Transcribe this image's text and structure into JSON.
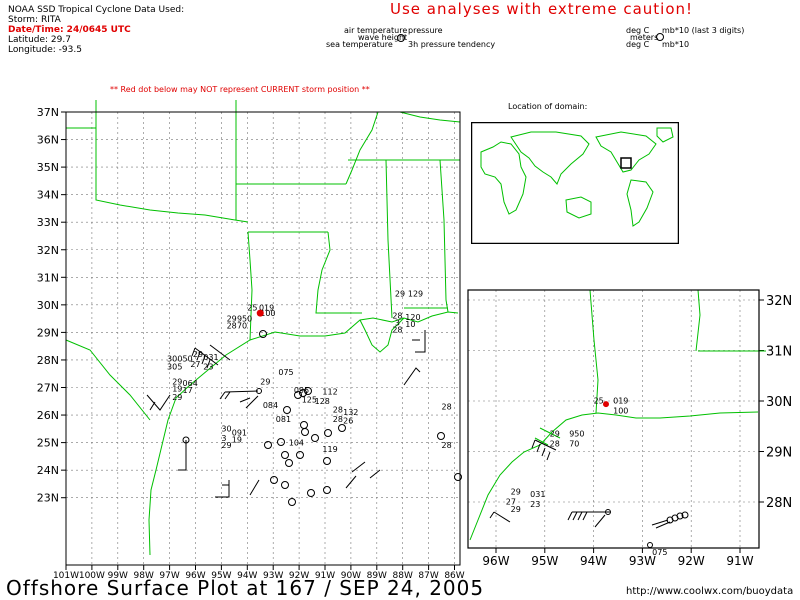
{
  "header": {
    "source": "NOAA SSD Tropical Cyclone Data Used:",
    "storm": "Storm: RITA",
    "datetime": "Date/Time: 24/0645 UTC",
    "latitude": "Latitude: 29.7",
    "longitude": "Longitude: -93.5",
    "caution": "Use analyses with extreme caution!",
    "warning": "** Red dot below may NOT represent CURRENT storm position **"
  },
  "legend": {
    "air_temperature": "air temperature",
    "pressure": "pressure",
    "wave_height": "wave height",
    "sea_temperature": "sea temperature",
    "pressure_tendency": "3h pressure tendency",
    "deg_c_1": "deg C",
    "mb_units": "mb*10 (last 3 digits)",
    "meters": "meters",
    "deg_c_2": "deg C",
    "mb_tendency_units": "mb*10"
  },
  "inset": {
    "title": "Location of domain:"
  },
  "main_map": {
    "lat_labels": [
      "37N",
      "36N",
      "35N",
      "34N",
      "33N",
      "32N",
      "31N",
      "30N",
      "29N",
      "28N",
      "27N",
      "26N",
      "25N",
      "24N",
      "23N"
    ],
    "lon_labels": [
      "101W",
      "100W",
      "99W",
      "98W",
      "97W",
      "96W",
      "95W",
      "94W",
      "93W",
      "92W",
      "91W",
      "90W",
      "89W",
      "88W",
      "87W",
      "86W"
    ],
    "station_labels": [
      {
        "text": "25",
        "lon": -94.0,
        "lat": 29.8
      },
      {
        "text": "019",
        "lon": -93.55,
        "lat": 29.8
      },
      {
        "text": "100",
        "lon": -93.5,
        "lat": 29.6
      },
      {
        "text": "29",
        "lon": -94.8,
        "lat": 29.4
      },
      {
        "text": "950",
        "lon": -94.4,
        "lat": 29.4
      },
      {
        "text": "28",
        "lon": -94.8,
        "lat": 29.15
      },
      {
        "text": "70",
        "lon": -94.4,
        "lat": 29.15
      },
      {
        "text": "29",
        "lon": -88.3,
        "lat": 30.3
      },
      {
        "text": "129",
        "lon": -87.8,
        "lat": 30.3
      },
      {
        "text": "28",
        "lon": -88.4,
        "lat": 29.5
      },
      {
        "text": "120",
        "lon": -87.9,
        "lat": 29.45
      },
      {
        "text": "3",
        "lon": -88.3,
        "lat": 29.25
      },
      {
        "text": "10",
        "lon": -87.9,
        "lat": 29.2
      },
      {
        "text": "28",
        "lon": -88.4,
        "lat": 29.0
      },
      {
        "text": "29",
        "lon": -96.1,
        "lat": 28.1
      },
      {
        "text": "031",
        "lon": -95.7,
        "lat": 28.0
      },
      {
        "text": "30",
        "lon": -97.1,
        "lat": 27.95
      },
      {
        "text": "050",
        "lon": -96.7,
        "lat": 27.95
      },
      {
        "text": "27",
        "lon": -96.2,
        "lat": 27.75
      },
      {
        "text": "23",
        "lon": -95.7,
        "lat": 27.65
      },
      {
        "text": "30",
        "lon": -97.1,
        "lat": 27.65
      },
      {
        "text": "5",
        "lon": -96.7,
        "lat": 27.65
      },
      {
        "text": "29",
        "lon": -96.9,
        "lat": 27.1
      },
      {
        "text": "064",
        "lon": -96.5,
        "lat": 27.05
      },
      {
        "text": "19",
        "lon": -96.9,
        "lat": 26.85
      },
      {
        "text": "17",
        "lon": -96.5,
        "lat": 26.8
      },
      {
        "text": "29",
        "lon": -96.9,
        "lat": 26.55
      },
      {
        "text": "075",
        "lon": -92.8,
        "lat": 27.45
      },
      {
        "text": "29",
        "lon": -93.5,
        "lat": 27.1
      },
      {
        "text": "095",
        "lon": -92.2,
        "lat": 26.8
      },
      {
        "text": "112",
        "lon": -91.1,
        "lat": 26.75
      },
      {
        "text": "125",
        "lon": -91.9,
        "lat": 26.45
      },
      {
        "text": "128",
        "lon": -91.4,
        "lat": 26.4
      },
      {
        "text": "084",
        "lon": -93.4,
        "lat": 26.25
      },
      {
        "text": "28",
        "lon": -90.7,
        "lat": 26.1
      },
      {
        "text": "132",
        "lon": -90.3,
        "lat": 26.0
      },
      {
        "text": "081",
        "lon": -92.9,
        "lat": 25.75
      },
      {
        "text": "28",
        "lon": -90.7,
        "lat": 25.75
      },
      {
        "text": "26",
        "lon": -90.3,
        "lat": 25.7
      },
      {
        "text": "30",
        "lon": -95.0,
        "lat": 25.4
      },
      {
        "text": "091",
        "lon": -94.6,
        "lat": 25.25
      },
      {
        "text": "3",
        "lon": -95.0,
        "lat": 25.05
      },
      {
        "text": "19",
        "lon": -94.6,
        "lat": 25.0
      },
      {
        "text": "29",
        "lon": -95.0,
        "lat": 24.8
      },
      {
        "text": "104",
        "lon": -92.4,
        "lat": 24.9
      },
      {
        "text": "119",
        "lon": -91.1,
        "lat": 24.65
      },
      {
        "text": "28",
        "lon": -86.5,
        "lat": 26.2
      },
      {
        "text": "28",
        "lon": -86.5,
        "lat": 24.8
      }
    ]
  },
  "detail_map": {
    "lat_labels": [
      "32N",
      "31N",
      "30N",
      "29N",
      "28N"
    ],
    "lon_labels": [
      "96W",
      "95W",
      "94W",
      "93W",
      "92W",
      "91W"
    ],
    "station_labels": [
      {
        "text": "25",
        "lon": -94.0,
        "lat": 29.95
      },
      {
        "text": "019",
        "lon": -93.6,
        "lat": 29.95
      },
      {
        "text": "100",
        "lon": -93.6,
        "lat": 29.75
      },
      {
        "text": "29",
        "lon": -94.9,
        "lat": 29.3
      },
      {
        "text": "950",
        "lon": -94.5,
        "lat": 29.3
      },
      {
        "text": "28",
        "lon": -94.9,
        "lat": 29.1
      },
      {
        "text": "70",
        "lon": -94.5,
        "lat": 29.1
      },
      {
        "text": "29",
        "lon": -95.7,
        "lat": 28.15
      },
      {
        "text": "031",
        "lon": -95.3,
        "lat": 28.1
      },
      {
        "text": "27",
        "lon": -95.8,
        "lat": 27.95
      },
      {
        "text": "23",
        "lon": -95.3,
        "lat": 27.9
      },
      {
        "text": "29",
        "lon": -95.7,
        "lat": 27.8
      },
      {
        "text": "075",
        "lon": -92.8,
        "lat": 26.95
      }
    ]
  },
  "storm_position": {
    "lon": -93.5,
    "lat": 29.7
  },
  "footer": {
    "title": "Offshore Surface Plot at 167 / SEP 24, 2005",
    "url": "http://www.coolwx.com/buoydata"
  },
  "colors": {
    "caution": "#e00000",
    "boundary": "#00c000",
    "grid": "#777777",
    "storm_dot": "#e00000"
  }
}
